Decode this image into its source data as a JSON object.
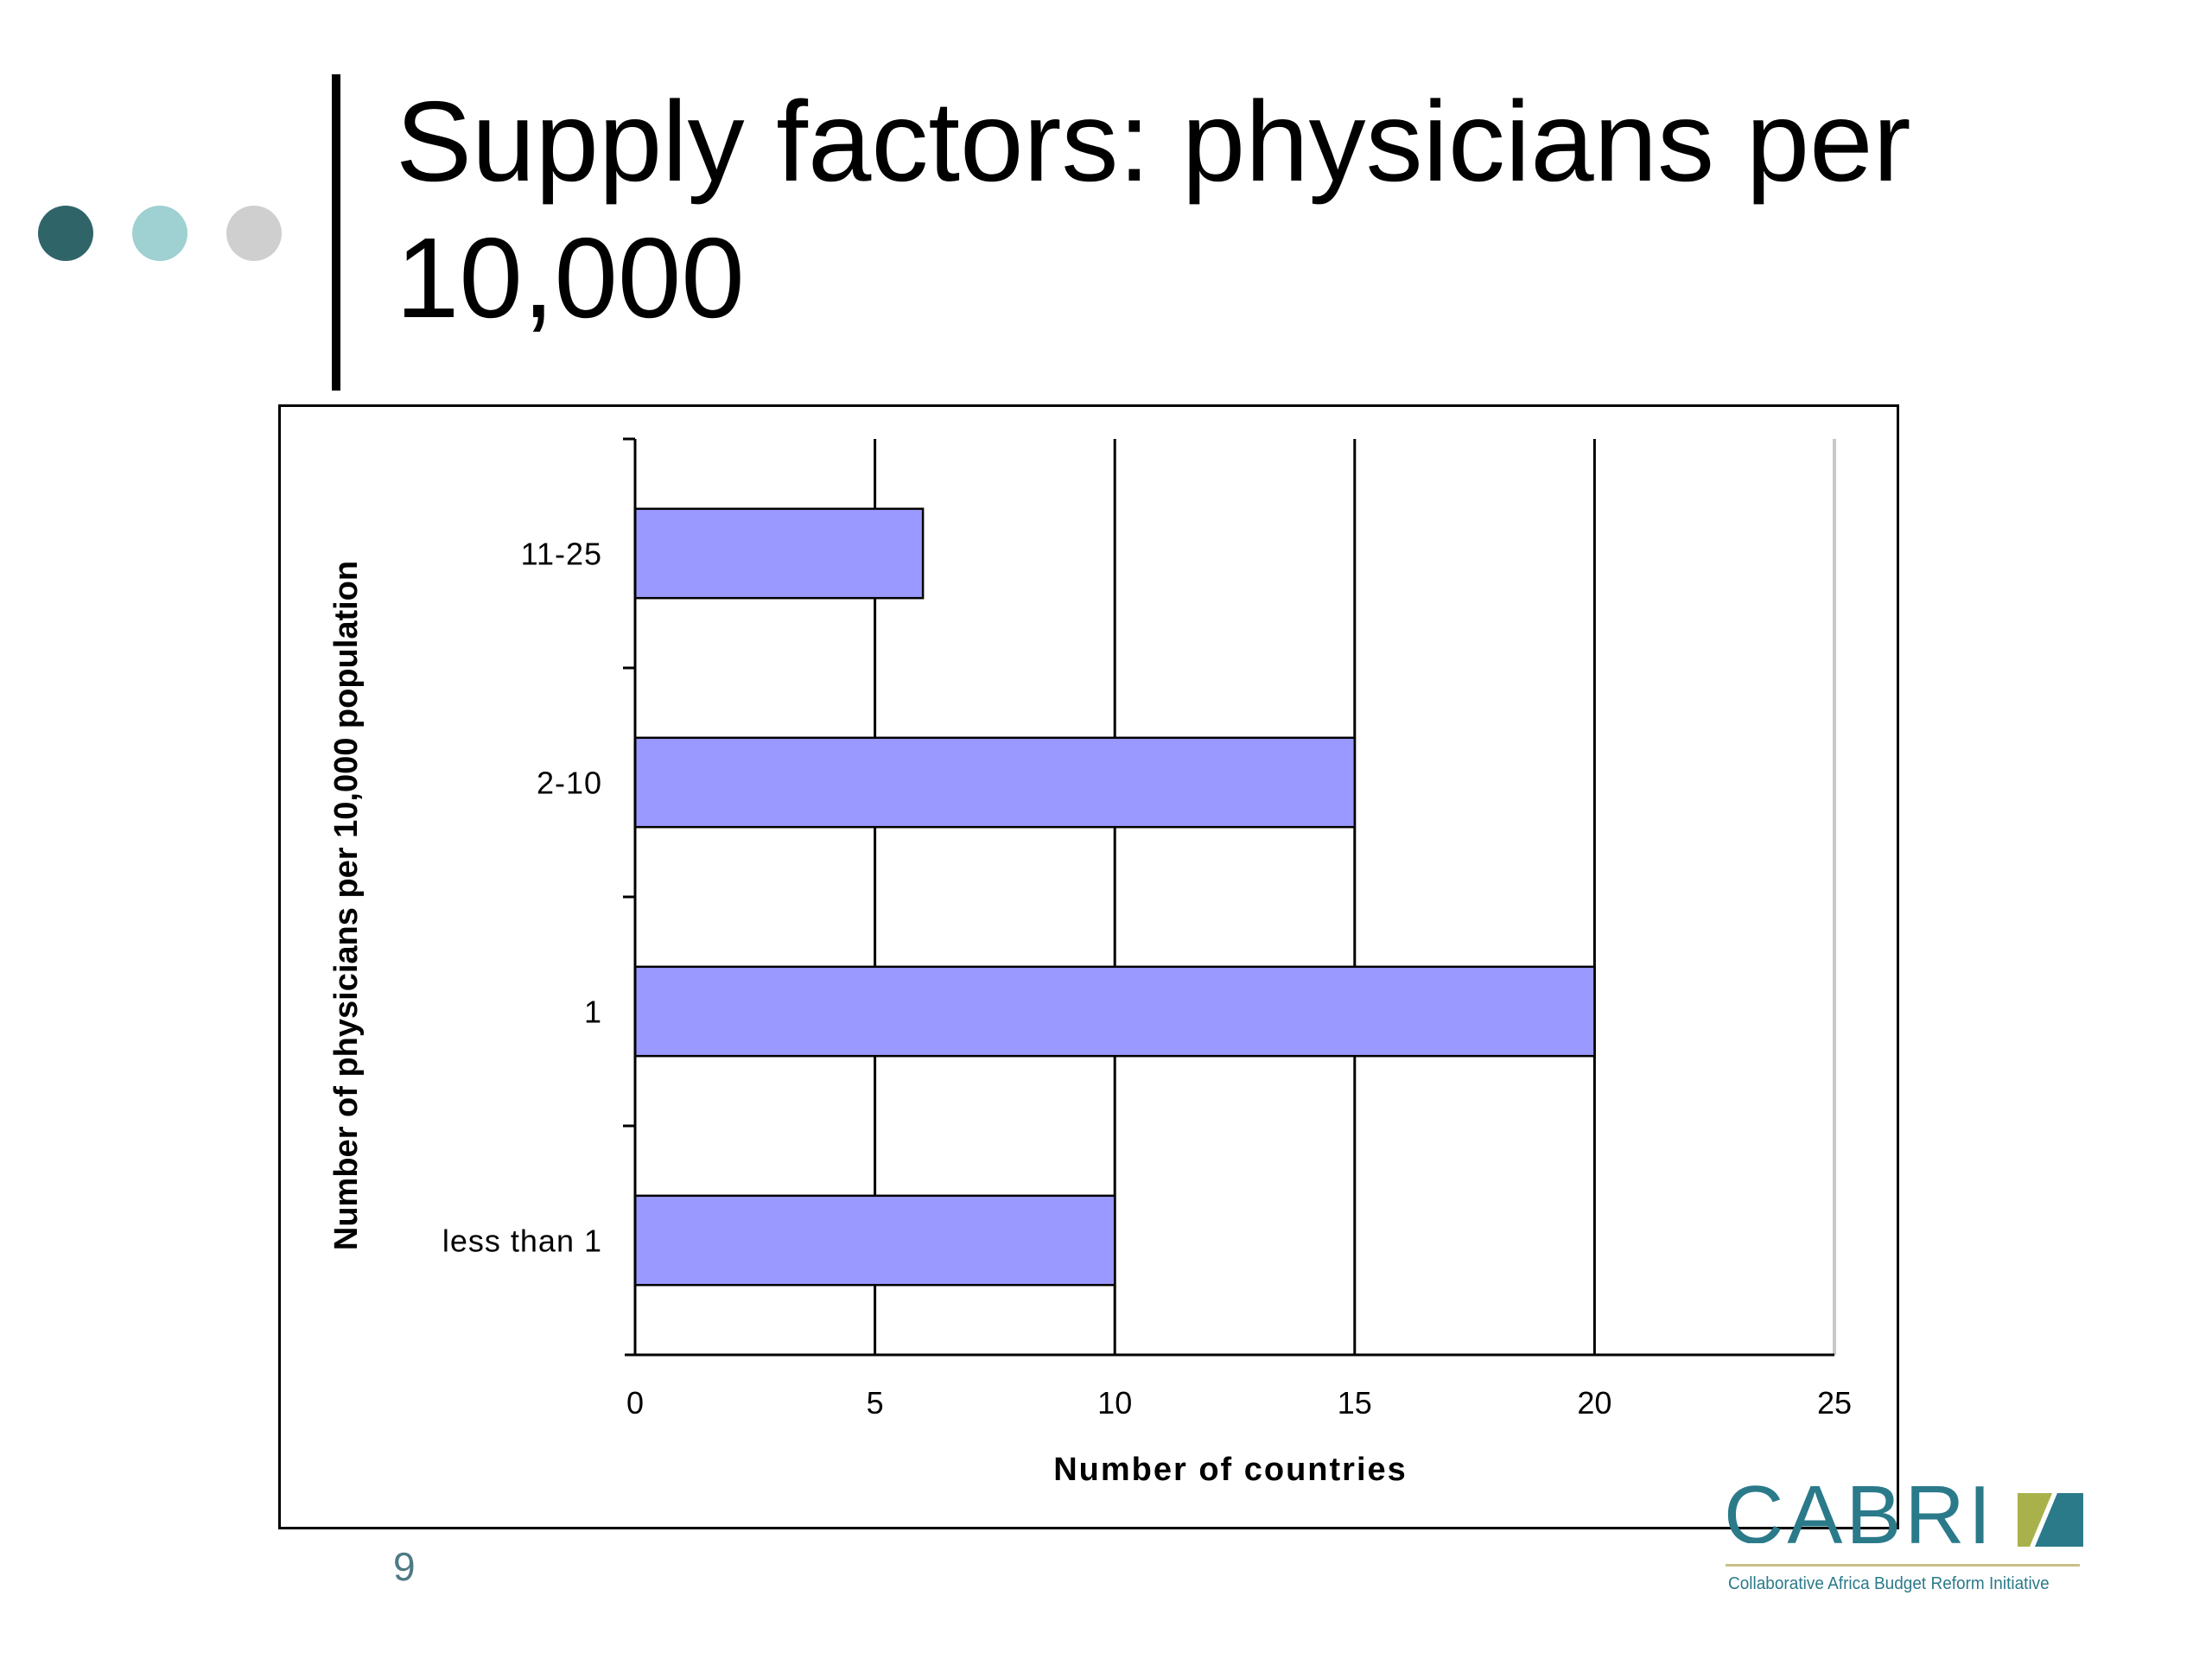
{
  "slide": {
    "title_line1": "Supply factors: physicians per",
    "title_line2": "10,000",
    "page_number": "9",
    "bullet_dot_colors": [
      "#2f6569",
      "#9fd0d2",
      "#cfcfcf"
    ]
  },
  "logo": {
    "word": "CABRI",
    "tagline": "Collaborative Africa Budget Reform Initiative",
    "word_color": "#2a7a8a",
    "mark_colors": [
      "#a9b24a",
      "#2a7a8a"
    ]
  },
  "chart_data": {
    "type": "bar",
    "orientation": "horizontal",
    "categories": [
      "11-25",
      "2-10",
      "1",
      "less than 1"
    ],
    "values": [
      6,
      15,
      20,
      10
    ],
    "xlabel": "Number of countries",
    "ylabel": "Number of physicians per 10,000 population",
    "xlim": [
      0,
      25
    ],
    "xticks": [
      "0",
      "5",
      "10",
      "15",
      "20",
      "25"
    ],
    "grid": "vertical",
    "bar_color": "#9999ff",
    "legend": "none"
  }
}
